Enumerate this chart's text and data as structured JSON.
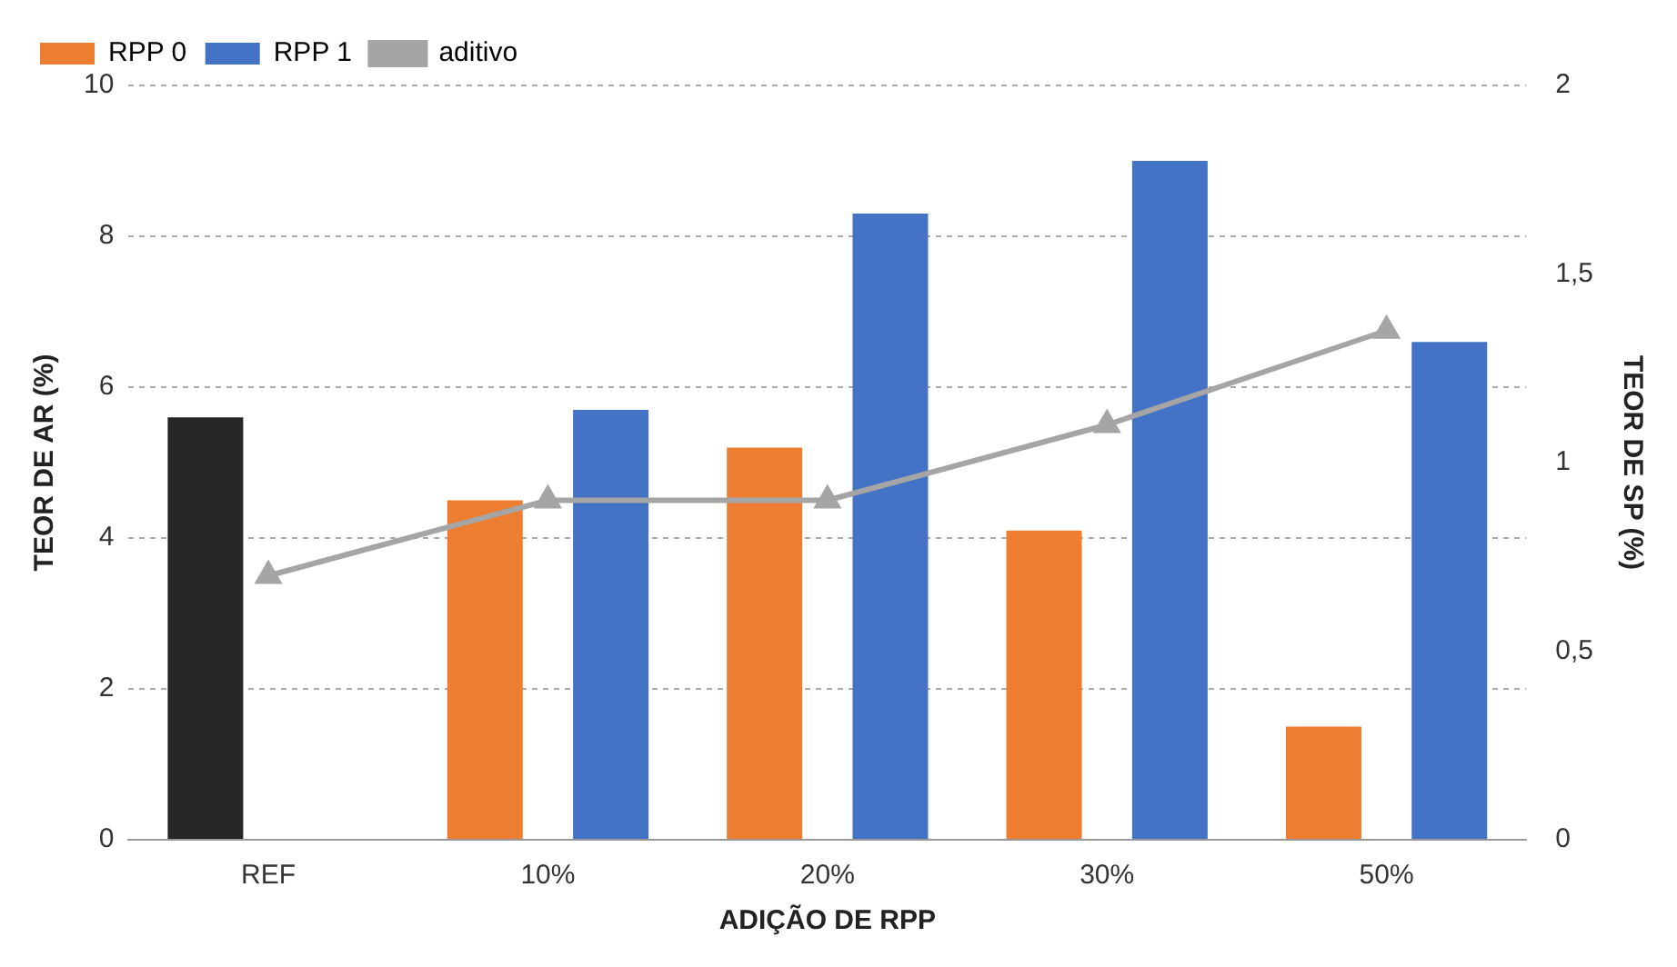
{
  "chart_data": {
    "type": "bar",
    "xlabel": "ADIÇÃO DE RPP",
    "ylabel": "TEOR DE AR (%)",
    "y2label": "TEOR DE SP (%)",
    "categories": [
      "REF",
      "10%",
      "20%",
      "30%",
      "50%"
    ],
    "series": [
      {
        "name": "RPP 0",
        "color": "#ed7d31",
        "colors": [
          "#262626",
          "#ed7d31",
          "#ed7d31",
          "#ed7d31",
          "#ed7d31"
        ],
        "values": [
          5.6,
          4.5,
          5.2,
          4.1,
          1.5
        ]
      },
      {
        "name": "RPP 1",
        "color": "#4472c4",
        "values": [
          null,
          5.7,
          8.3,
          9.0,
          6.6
        ]
      },
      {
        "name": "aditivo",
        "type": "line",
        "axis": "y2",
        "color": "#a5a5a5",
        "marker": "triangle",
        "values": [
          0.7,
          0.9,
          0.9,
          1.1,
          1.35
        ]
      }
    ],
    "ylim": [
      0,
      10
    ],
    "yticks": [
      0,
      2,
      4,
      6,
      8,
      10
    ],
    "y2lim": [
      0,
      2
    ],
    "y2ticks": [
      0,
      {
        "value": 0.5,
        "label": "0,5"
      },
      1,
      {
        "value": 1.5,
        "label": "1,5"
      },
      2
    ],
    "grid": "y",
    "legend": "top left"
  }
}
